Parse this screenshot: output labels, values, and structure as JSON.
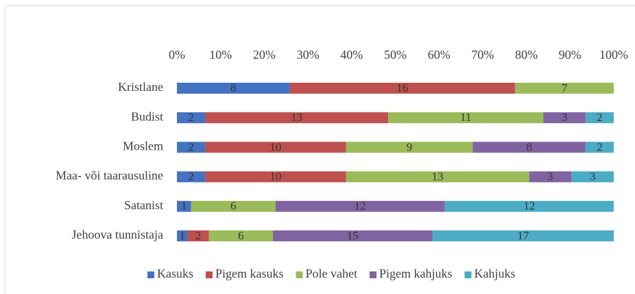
{
  "chart_data": {
    "type": "bar",
    "orientation": "horizontal",
    "stacking": "percent",
    "categories": [
      "Kristlane",
      "Budist",
      "Moslem",
      "Maa- või  taarausuline",
      "Satanist",
      "Jehoova tunnistaja"
    ],
    "series": [
      {
        "name": "Kasuks",
        "color": "#4472c4",
        "values": [
          8,
          2,
          2,
          2,
          1,
          1
        ]
      },
      {
        "name": "Pigem kasuks",
        "color": "#c0504d",
        "values": [
          16,
          13,
          10,
          10,
          null,
          2
        ]
      },
      {
        "name": "Pole vahet",
        "color": "#9bbb59",
        "values": [
          7,
          11,
          9,
          13,
          6,
          6
        ]
      },
      {
        "name": "Pigem kahjuks",
        "color": "#8064a2",
        "values": [
          null,
          3,
          8,
          3,
          12,
          15
        ]
      },
      {
        "name": "Kahjuks",
        "color": "#4bacc6",
        "values": [
          null,
          2,
          2,
          3,
          12,
          17
        ]
      }
    ],
    "xlim": [
      0,
      100
    ],
    "xticks": [
      {
        "value": 0,
        "label": "0%"
      },
      {
        "value": 10,
        "label": "10%"
      },
      {
        "value": 20,
        "label": "20%"
      },
      {
        "value": 30,
        "label": "30%"
      },
      {
        "value": 40,
        "label": "40%"
      },
      {
        "value": 50,
        "label": "50%"
      },
      {
        "value": 60,
        "label": "60%"
      },
      {
        "value": 70,
        "label": "70%"
      },
      {
        "value": 80,
        "label": "80%"
      },
      {
        "value": 90,
        "label": "90%"
      },
      {
        "value": 100,
        "label": "100%"
      }
    ],
    "legend": "bottom"
  }
}
